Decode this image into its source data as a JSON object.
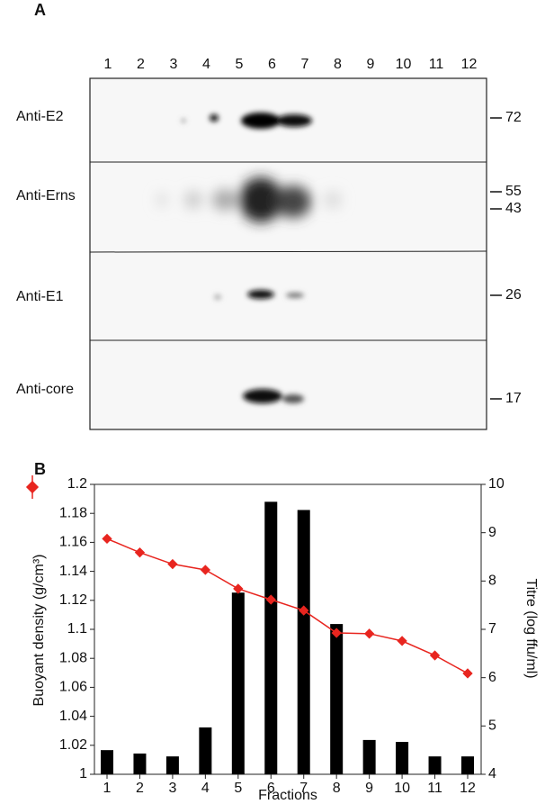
{
  "panel_a": {
    "label": "A",
    "lanes": [
      "1",
      "2",
      "3",
      "4",
      "5",
      "6",
      "7",
      "8",
      "9",
      "10",
      "11",
      "12"
    ],
    "blots": [
      {
        "label": "Anti-E2",
        "markers": [
          72
        ]
      },
      {
        "label": "Anti-Erns",
        "markers": [
          55,
          43
        ]
      },
      {
        "label": "Anti-E1",
        "markers": [
          26
        ]
      },
      {
        "label": "Anti-core",
        "markers": [
          17
        ]
      }
    ]
  },
  "chart_data": {
    "type": "combo",
    "panel_label": "B",
    "x_label": "Fractions",
    "y_label": "Buoyant density (g/cm³)",
    "y2_label": "Titre (log ffu/ml)",
    "categories": [
      "1",
      "2",
      "3",
      "4",
      "5",
      "6",
      "7",
      "8",
      "9",
      "10",
      "11",
      "12"
    ],
    "ylim": [
      1,
      1.2
    ],
    "yticks": [
      1,
      1.02,
      1.04,
      1.06,
      1.08,
      1.1,
      1.12,
      1.14,
      1.16,
      1.18,
      1.2
    ],
    "y2lim": [
      4,
      10
    ],
    "y2ticks": [
      4,
      5,
      6,
      7,
      8,
      9,
      10
    ],
    "series": [
      {
        "type": "bar",
        "axis": "y2",
        "color": "#000000",
        "values": [
          4.5,
          4.43,
          4.37,
          4.97,
          7.76,
          9.64,
          9.47,
          7.11,
          4.71,
          4.67,
          4.37,
          4.37
        ]
      },
      {
        "type": "line",
        "color": "#e8251f",
        "values": [
          1.1625,
          1.153,
          1.145,
          1.141,
          1.128,
          1.1205,
          1.113,
          1.0975,
          1.097,
          1.092,
          1.082,
          1.0696
        ]
      }
    ]
  }
}
